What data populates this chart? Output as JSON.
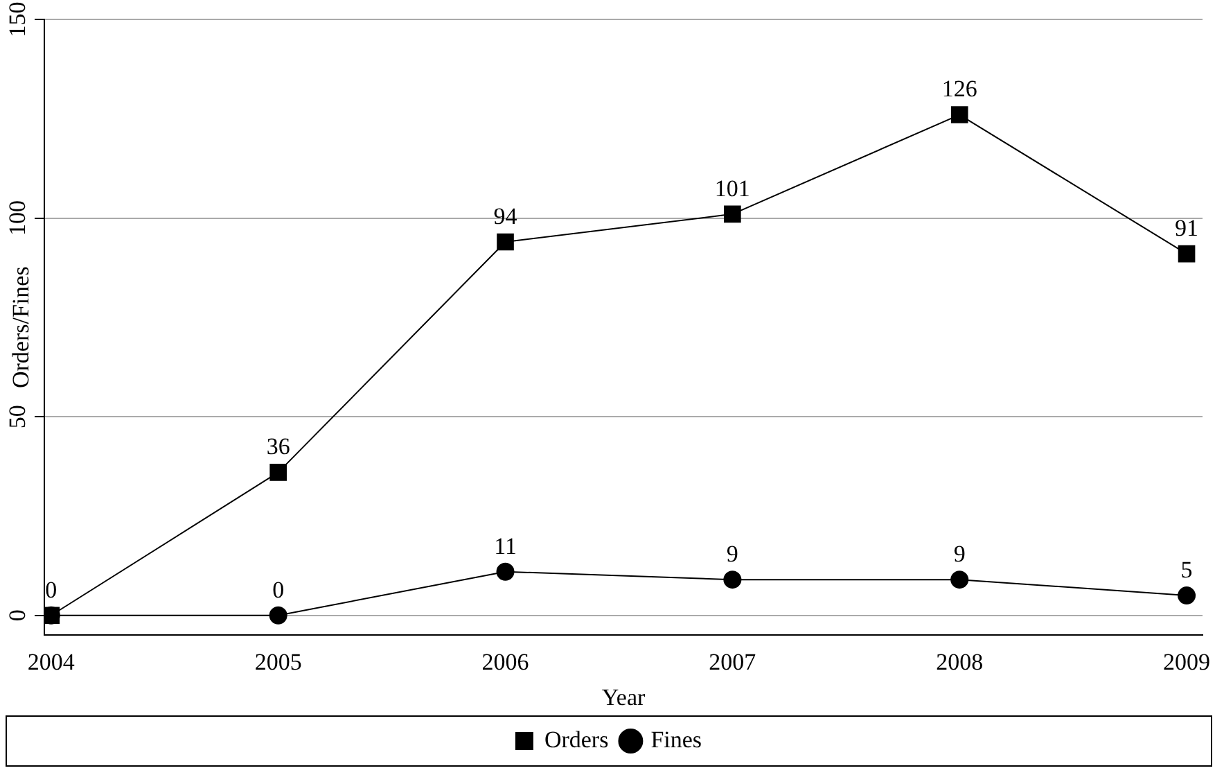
{
  "chart_data": {
    "type": "line",
    "xlabel": "Year",
    "ylabel": "Orders/Fines",
    "x": [
      2004,
      2005,
      2006,
      2007,
      2008,
      2009
    ],
    "series": [
      {
        "name": "Orders",
        "color": "#000000",
        "marker": "square",
        "values": [
          0,
          36,
          94,
          101,
          126,
          91
        ],
        "value_labels": [
          "0",
          "36",
          "94",
          "101",
          "126",
          "91"
        ]
      },
      {
        "name": "Fines",
        "color": "#000000",
        "marker": "circle",
        "values": [
          0,
          0,
          11,
          9,
          9,
          5
        ],
        "value_labels": [
          null,
          "0",
          "11",
          "9",
          "9",
          "5"
        ]
      }
    ],
    "xlim": [
      2003.97,
      2009.07
    ],
    "xticks": [
      2004,
      2005,
      2006,
      2007,
      2008,
      2009
    ],
    "ylim": [
      -5,
      150
    ],
    "yticks": [
      0,
      50,
      100,
      150
    ],
    "grid": "y",
    "legend": "bottom",
    "line_style": "solid"
  }
}
